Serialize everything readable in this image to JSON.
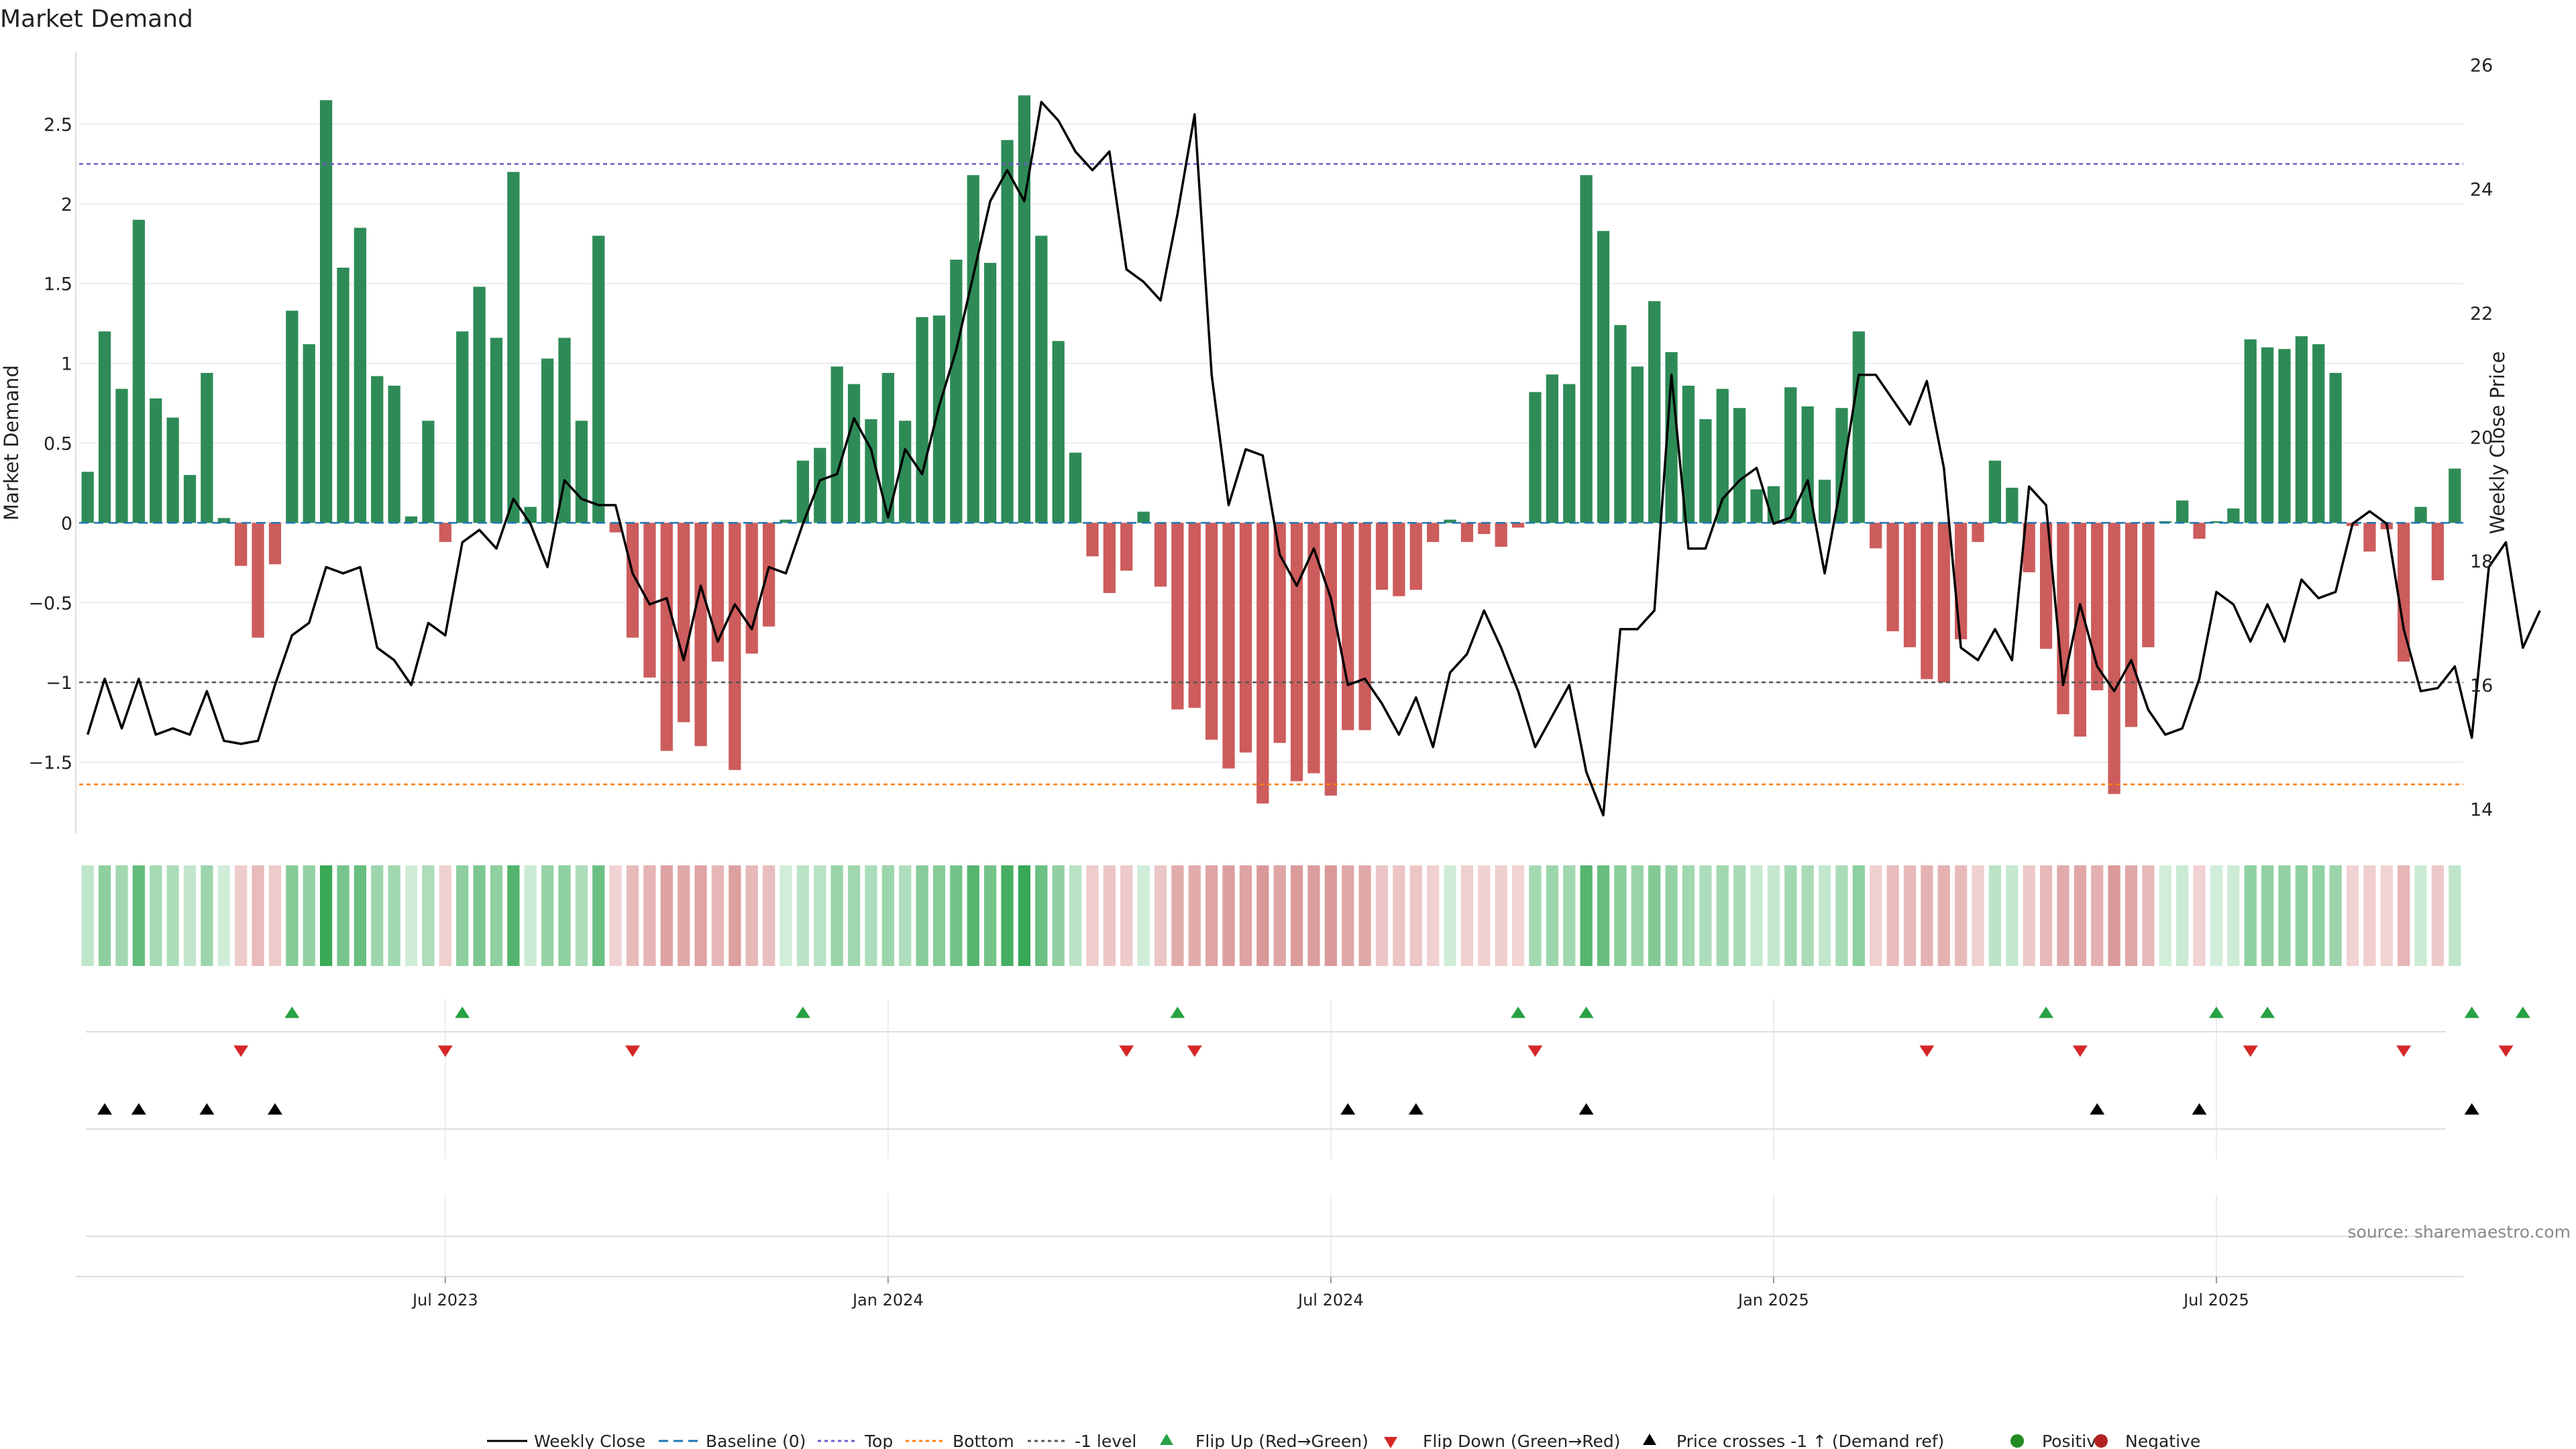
{
  "chart_data": {
    "type": "bar",
    "title": "Market Demand",
    "ylabel": "Market Demand",
    "y2label": "Weekly Close Price",
    "ylim": [
      -1.95,
      2.95
    ],
    "y2lim": [
      13.6,
      26.2
    ],
    "y_ticks": [
      -1.5,
      -1,
      -0.5,
      0,
      0.5,
      1,
      1.5,
      2,
      2.5
    ],
    "y_tick_labels": [
      "−1.5",
      "−1",
      "−0.5",
      "0",
      "0.5",
      "1",
      "1.5",
      "2",
      "2.5"
    ],
    "y2_ticks": [
      14,
      16,
      18,
      20,
      22,
      24,
      26
    ],
    "y2_tick_labels": [
      "14",
      "16",
      "18",
      "20",
      "22",
      "24",
      "26"
    ],
    "x_tick_labels": [
      "Jul 2023",
      "Jan 2024",
      "Jul 2024",
      "Jan 2025",
      "Jul 2025"
    ],
    "x_tick_weeks": [
      21,
      47,
      73,
      99,
      125
    ],
    "reference_lines": {
      "top": 2.25,
      "bottom": -1.64,
      "minus_one": -1.0,
      "baseline": 0
    },
    "demand": [
      0.32,
      1.2,
      0.84,
      1.9,
      0.78,
      0.66,
      0.3,
      0.94,
      0.03,
      -0.27,
      -0.72,
      -0.26,
      1.33,
      1.12,
      2.65,
      1.6,
      1.85,
      0.92,
      0.86,
      0.04,
      0.64,
      -0.12,
      1.2,
      1.48,
      1.16,
      2.2,
      0.1,
      1.03,
      1.16,
      0.64,
      1.8,
      -0.06,
      -0.72,
      -0.97,
      -1.43,
      -1.25,
      -1.4,
      -0.87,
      -1.55,
      -0.82,
      -0.65,
      0.02,
      0.39,
      0.47,
      0.98,
      0.87,
      0.65,
      0.94,
      0.64,
      1.29,
      1.3,
      1.65,
      2.18,
      1.63,
      2.4,
      2.68,
      1.8,
      1.14,
      0.44,
      -0.21,
      -0.44,
      -0.3,
      0.07,
      -0.4,
      -1.17,
      -1.16,
      -1.36,
      -1.54,
      -1.44,
      -1.76,
      -1.38,
      -1.62,
      -1.57,
      -1.71,
      -1.3,
      -1.3,
      -0.42,
      -0.46,
      -0.42,
      -0.12,
      0.02,
      -0.12,
      -0.07,
      -0.15,
      -0.03,
      0.82,
      0.93,
      0.87,
      2.18,
      1.83,
      1.24,
      0.98,
      1.39,
      1.07,
      0.86,
      0.65,
      0.84,
      0.72,
      0.21,
      0.23,
      0.85,
      0.73,
      0.27,
      0.72,
      1.2,
      -0.16,
      -0.68,
      -0.78,
      -0.98,
      -1.0,
      -0.73,
      -0.12,
      0.39,
      0.22,
      -0.31,
      -0.79,
      -1.2,
      -1.34,
      -1.05,
      -1.7,
      -1.28,
      -0.78,
      0.01,
      0.14,
      -0.1,
      0.01,
      0.09,
      1.15,
      1.1,
      1.09,
      1.17,
      1.12,
      0.94,
      -0.02,
      -0.18,
      -0.04,
      -0.87,
      0.1,
      -0.36,
      0.34
    ],
    "weekly_close": [
      15.2,
      16.1,
      15.3,
      16.1,
      15.2,
      15.3,
      15.2,
      15.9,
      15.1,
      15.05,
      15.1,
      16.0,
      16.8,
      17.0,
      17.9,
      17.8,
      17.9,
      16.6,
      16.4,
      16.0,
      17.0,
      16.8,
      18.3,
      18.5,
      18.2,
      19.0,
      18.6,
      17.9,
      19.3,
      19.0,
      18.9,
      18.9,
      17.8,
      17.3,
      17.4,
      16.4,
      17.6,
      16.7,
      17.3,
      16.9,
      17.9,
      17.8,
      18.6,
      19.3,
      19.4,
      20.3,
      19.8,
      18.7,
      19.8,
      19.4,
      20.5,
      21.4,
      22.6,
      23.8,
      24.3,
      23.8,
      25.4,
      25.1,
      24.6,
      24.3,
      24.6,
      22.7,
      22.5,
      22.2,
      23.6,
      25.2,
      21.0,
      18.9,
      19.8,
      19.7,
      18.1,
      17.6,
      18.2,
      17.4,
      16.0,
      16.1,
      15.7,
      15.2,
      15.8,
      15.0,
      16.2,
      16.5,
      17.2,
      16.6,
      15.9,
      15.0,
      15.5,
      16.0,
      14.6,
      13.9,
      16.9,
      16.9,
      17.2,
      21.0,
      18.2,
      18.2,
      19.0,
      19.3,
      19.5,
      18.6,
      18.7,
      19.3,
      17.8,
      19.3,
      21.0,
      21.0,
      20.6,
      20.2,
      20.9,
      19.5,
      16.6,
      16.4,
      16.9,
      16.4,
      19.2,
      18.9,
      16.0,
      17.3,
      16.3,
      15.9,
      16.4,
      15.6,
      15.2,
      15.3,
      16.1,
      17.5,
      17.3,
      16.7,
      17.3,
      16.7,
      17.7,
      17.4,
      17.5,
      18.6,
      18.8,
      18.6,
      16.9,
      15.9,
      15.95,
      16.3,
      15.15,
      17.9,
      18.3,
      16.6,
      17.2
    ],
    "flip_up_weeks": [
      12,
      22,
      42,
      64,
      84,
      88,
      115,
      125,
      128,
      140,
      143
    ],
    "flip_down_weeks": [
      9,
      21,
      32,
      61,
      65,
      85,
      108,
      117,
      127,
      136,
      142
    ],
    "price_cross_weeks": [
      1,
      3,
      7,
      11,
      74,
      78,
      88,
      118,
      124,
      140
    ],
    "legend": [
      "Weekly Close",
      "Baseline (0)",
      "Top",
      "Bottom",
      "-1 level",
      "Flip Up (Red→Green)",
      "Flip Down (Green→Red)",
      "Price crosses -1 ↑ (Demand ref)",
      "Positive",
      "Negative"
    ],
    "legend_location": "bottom-center",
    "source_note": "source: sharemaestro.com",
    "colors": {
      "positive": "#2e8b57",
      "negative": "#cd5c5c",
      "price": "#000000",
      "baseline": "#1f77b4",
      "top": "#6a5acd",
      "bottom": "#ff7f0e",
      "minus_one": "#555555",
      "flip_up": "#27a244",
      "flip_down": "#d62728",
      "cross": "#000000",
      "positive_dot": "#228b22",
      "negative_dot": "#b22222"
    }
  }
}
